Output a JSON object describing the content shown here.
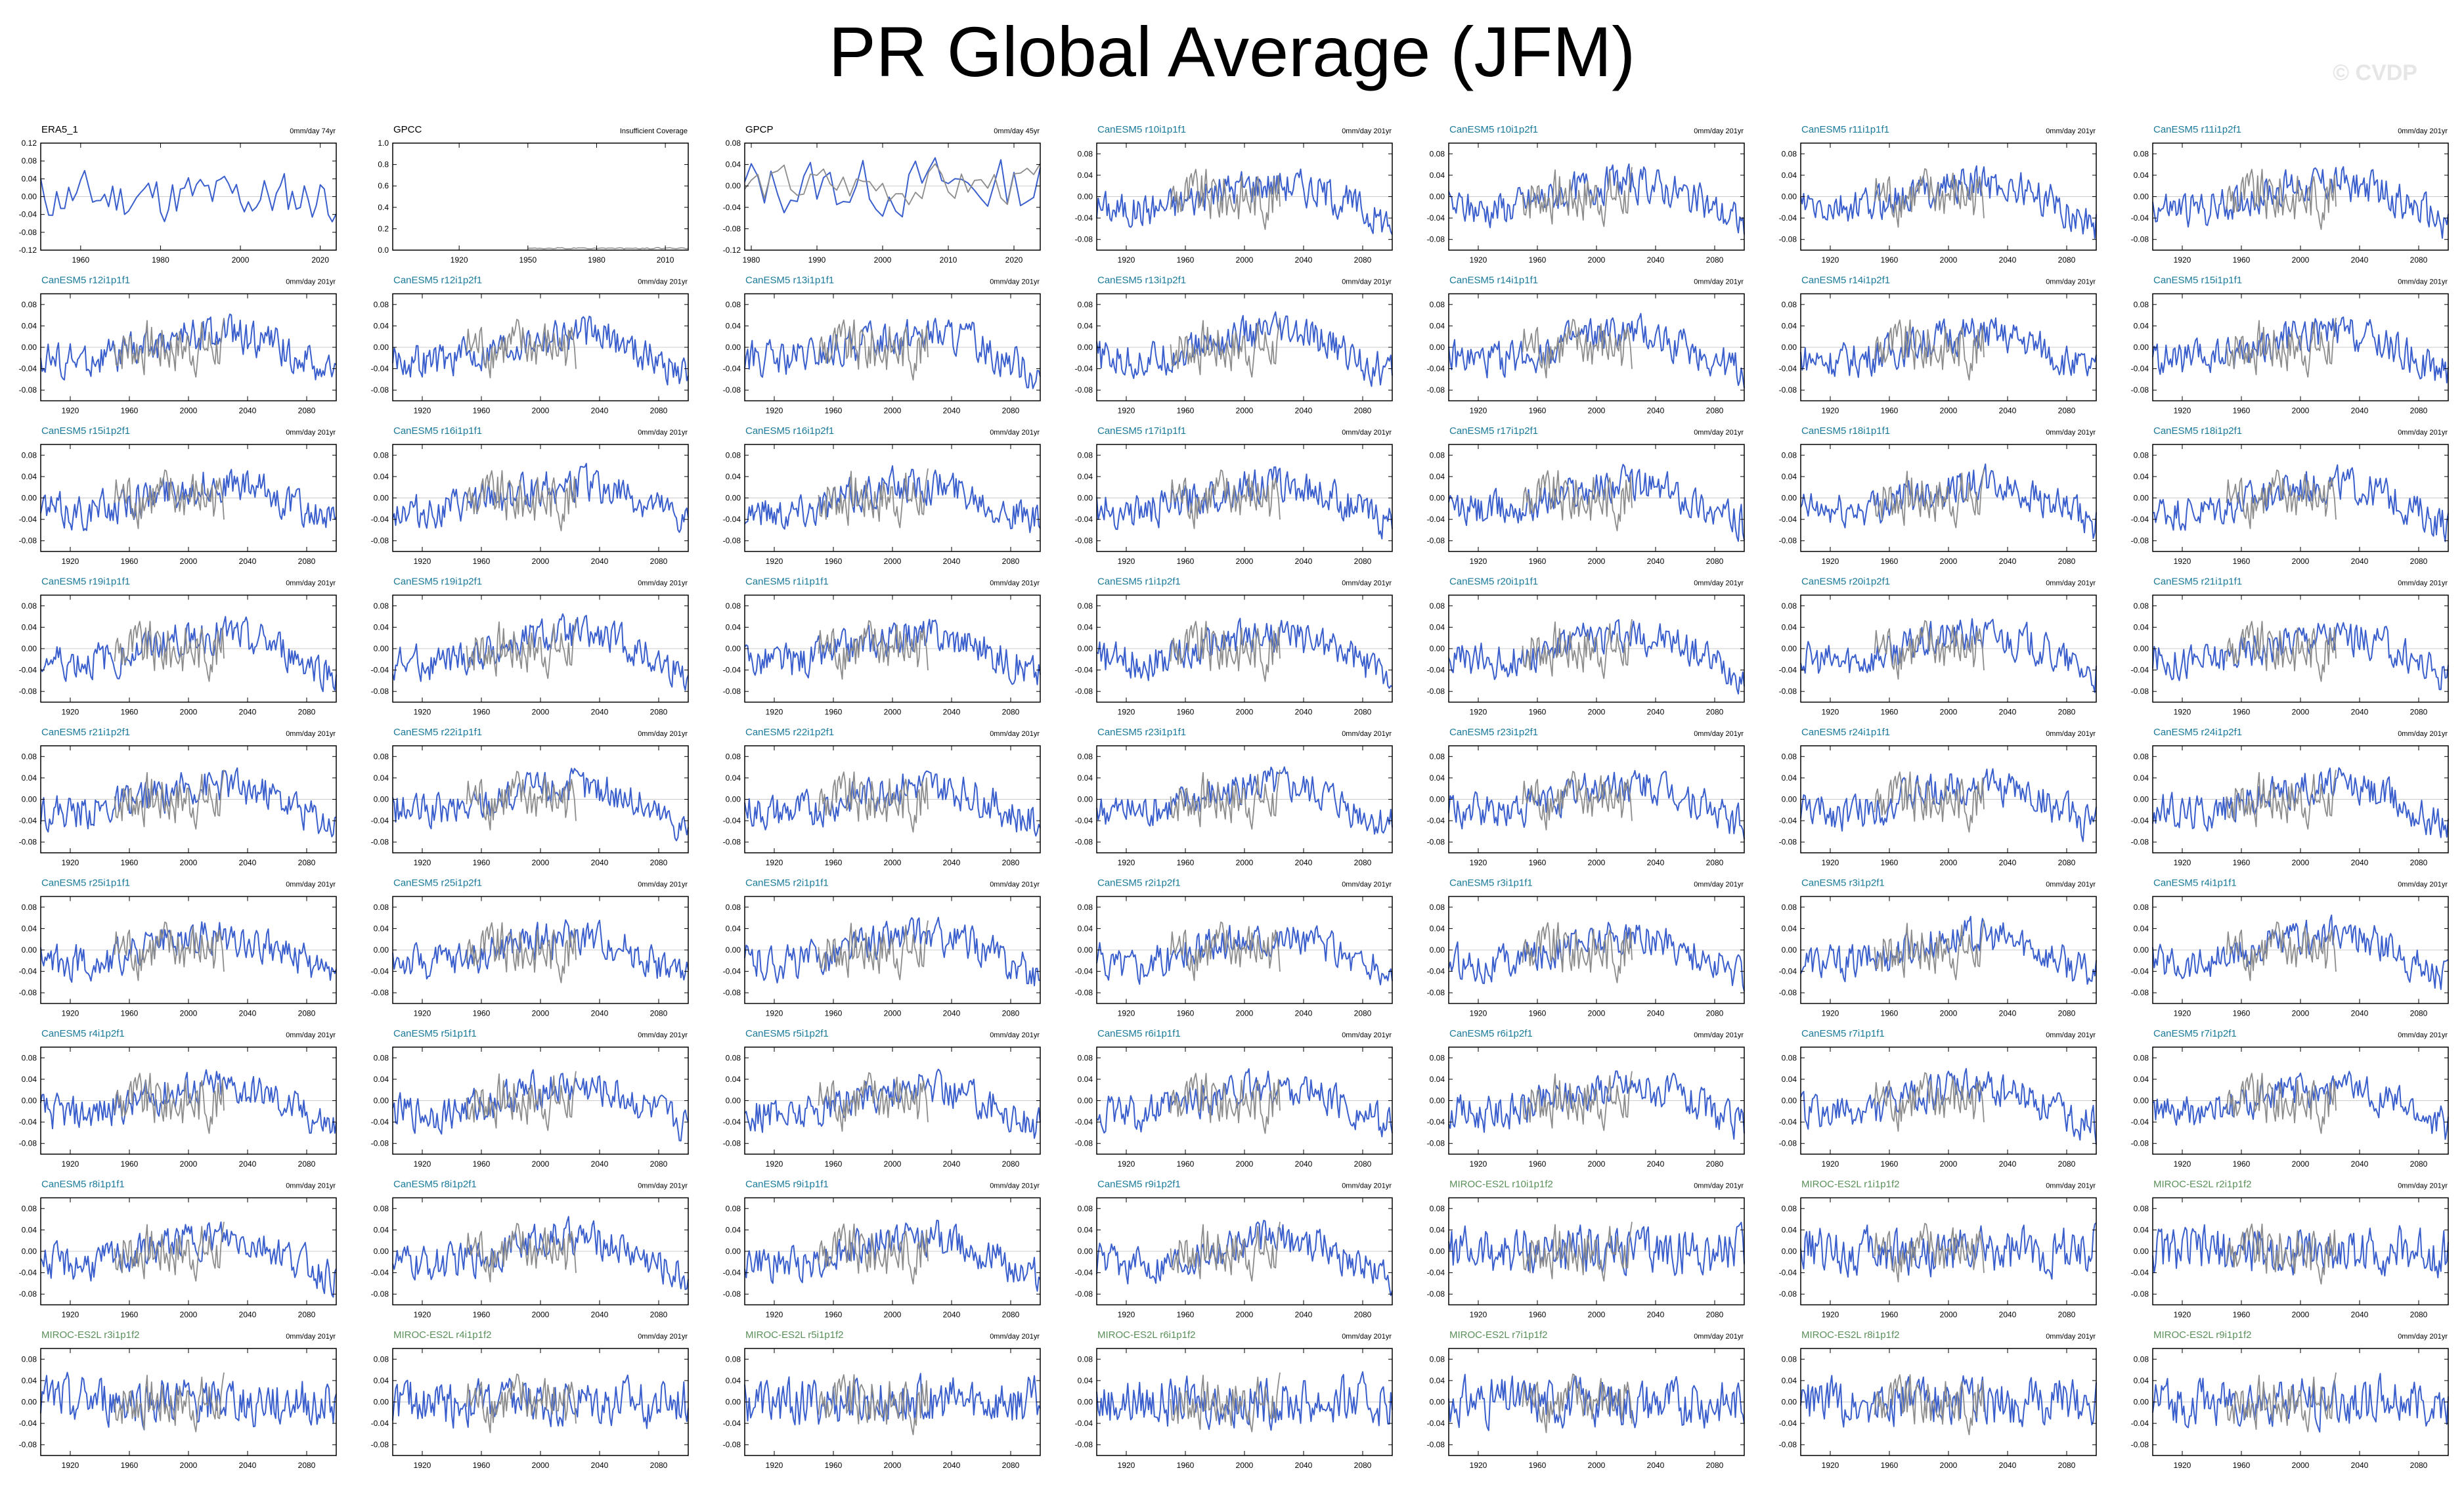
{
  "title": "PR Global Average (JFM)",
  "watermark": "© CVDP",
  "colors": {
    "model_line": "#3a5fcd",
    "obs_line": "#8c8c8c",
    "canesm_title": "#1a7a9a",
    "miroc_title": "#5a8f5a",
    "obs_title": "#000000",
    "zero_line": "#cccccc"
  },
  "chart_data": [
    {
      "type": "line",
      "title": "ERA5_1",
      "units": "0mm/day 74yr",
      "ylim": [
        -0.12,
        0.12
      ],
      "yticks": [
        "0.12",
        "0.08",
        "0.04",
        "0.00",
        "-0.04",
        "-0.08",
        "-0.12"
      ],
      "xlim": [
        1950,
        2024
      ],
      "xticks": [
        "1960",
        "1980",
        "2000",
        "2020"
      ],
      "series": [
        {
          "name": "ERA5_1",
          "kind": "obs_primary",
          "x_start": 1950,
          "x_end": 2024,
          "amplitude": 0.05,
          "seed": 11
        }
      ]
    },
    {
      "type": "line",
      "title": "GPCC",
      "units": "Insufficient Coverage",
      "ylim": [
        0,
        1.0
      ],
      "yticks": [
        "1.0",
        "0.8",
        "0.6",
        "0.4",
        "0.2",
        "0.0"
      ],
      "xlim": [
        1891,
        2020
      ],
      "xticks": [
        "1920",
        "1950",
        "1980",
        "2010"
      ],
      "series": [
        {
          "name": "GPCC",
          "kind": "obs_flat",
          "x_start": 1950,
          "x_end": 2020,
          "amplitude": 0.01,
          "seed": 12
        }
      ]
    },
    {
      "type": "line",
      "title": "GPCP",
      "units": "0mm/day 45yr",
      "ylim": [
        -0.12,
        0.08
      ],
      "yticks": [
        "0.08",
        "0.04",
        "0.00",
        "-0.04",
        "-0.08",
        "-0.12"
      ],
      "xlim": [
        1979,
        2024
      ],
      "xticks": [
        "1980",
        "1990",
        "2000",
        "2010",
        "2020"
      ],
      "series": [
        {
          "name": "GPCP",
          "kind": "obs_primary",
          "x_start": 1979,
          "x_end": 2024,
          "amplitude": 0.05,
          "seed": 13
        },
        {
          "name": "ERA5_1",
          "kind": "obs_overlay",
          "x_start": 1979,
          "x_end": 2024,
          "amplitude": 0.035,
          "seed": 14
        }
      ]
    },
    {
      "type": "line",
      "title": "CanESM5 r10i1p1f1",
      "units": "0mm/day 201yr",
      "model": "CanESM5",
      "seed": 101
    },
    {
      "type": "line",
      "title": "CanESM5 r10i1p2f1",
      "units": "0mm/day 201yr",
      "model": "CanESM5",
      "seed": 102
    },
    {
      "type": "line",
      "title": "CanESM5 r11i1p1f1",
      "units": "0mm/day 201yr",
      "model": "CanESM5",
      "seed": 103
    },
    {
      "type": "line",
      "title": "CanESM5 r11i1p2f1",
      "units": "0mm/day 201yr",
      "model": "CanESM5",
      "seed": 104
    },
    {
      "type": "line",
      "title": "CanESM5 r12i1p1f1",
      "units": "0mm/day 201yr",
      "model": "CanESM5",
      "seed": 105
    },
    {
      "type": "line",
      "title": "CanESM5 r12i1p2f1",
      "units": "0mm/day 201yr",
      "model": "CanESM5",
      "seed": 106
    },
    {
      "type": "line",
      "title": "CanESM5 r13i1p1f1",
      "units": "0mm/day 201yr",
      "model": "CanESM5",
      "seed": 107
    },
    {
      "type": "line",
      "title": "CanESM5 r13i1p2f1",
      "units": "0mm/day 201yr",
      "model": "CanESM5",
      "seed": 108
    },
    {
      "type": "line",
      "title": "CanESM5 r14i1p1f1",
      "units": "0mm/day 201yr",
      "model": "CanESM5",
      "seed": 109
    },
    {
      "type": "line",
      "title": "CanESM5 r14i1p2f1",
      "units": "0mm/day 201yr",
      "model": "CanESM5",
      "seed": 110
    },
    {
      "type": "line",
      "title": "CanESM5 r15i1p1f1",
      "units": "0mm/day 201yr",
      "model": "CanESM5",
      "seed": 111
    },
    {
      "type": "line",
      "title": "CanESM5 r15i1p2f1",
      "units": "0mm/day 201yr",
      "model": "CanESM5",
      "seed": 112
    },
    {
      "type": "line",
      "title": "CanESM5 r16i1p1f1",
      "units": "0mm/day 201yr",
      "model": "CanESM5",
      "seed": 113
    },
    {
      "type": "line",
      "title": "CanESM5 r16i1p2f1",
      "units": "0mm/day 201yr",
      "model": "CanESM5",
      "seed": 114
    },
    {
      "type": "line",
      "title": "CanESM5 r17i1p1f1",
      "units": "0mm/day 201yr",
      "model": "CanESM5",
      "seed": 115
    },
    {
      "type": "line",
      "title": "CanESM5 r17i1p2f1",
      "units": "0mm/day 201yr",
      "model": "CanESM5",
      "seed": 116
    },
    {
      "type": "line",
      "title": "CanESM5 r18i1p1f1",
      "units": "0mm/day 201yr",
      "model": "CanESM5",
      "seed": 117
    },
    {
      "type": "line",
      "title": "CanESM5 r18i1p2f1",
      "units": "0mm/day 201yr",
      "model": "CanESM5",
      "seed": 118
    },
    {
      "type": "line",
      "title": "CanESM5 r19i1p1f1",
      "units": "0mm/day 201yr",
      "model": "CanESM5",
      "seed": 119
    },
    {
      "type": "line",
      "title": "CanESM5 r19i1p2f1",
      "units": "0mm/day 201yr",
      "model": "CanESM5",
      "seed": 120
    },
    {
      "type": "line",
      "title": "CanESM5 r1i1p1f1",
      "units": "0mm/day 201yr",
      "model": "CanESM5",
      "seed": 121
    },
    {
      "type": "line",
      "title": "CanESM5 r1i1p2f1",
      "units": "0mm/day 201yr",
      "model": "CanESM5",
      "seed": 122
    },
    {
      "type": "line",
      "title": "CanESM5 r20i1p1f1",
      "units": "0mm/day 201yr",
      "model": "CanESM5",
      "seed": 123
    },
    {
      "type": "line",
      "title": "CanESM5 r20i1p2f1",
      "units": "0mm/day 201yr",
      "model": "CanESM5",
      "seed": 124
    },
    {
      "type": "line",
      "title": "CanESM5 r21i1p1f1",
      "units": "0mm/day 201yr",
      "model": "CanESM5",
      "seed": 125
    },
    {
      "type": "line",
      "title": "CanESM5 r21i1p2f1",
      "units": "0mm/day 201yr",
      "model": "CanESM5",
      "seed": 126
    },
    {
      "type": "line",
      "title": "CanESM5 r22i1p1f1",
      "units": "0mm/day 201yr",
      "model": "CanESM5",
      "seed": 127
    },
    {
      "type": "line",
      "title": "CanESM5 r22i1p2f1",
      "units": "0mm/day 201yr",
      "model": "CanESM5",
      "seed": 128
    },
    {
      "type": "line",
      "title": "CanESM5 r23i1p1f1",
      "units": "0mm/day 201yr",
      "model": "CanESM5",
      "seed": 129
    },
    {
      "type": "line",
      "title": "CanESM5 r23i1p2f1",
      "units": "0mm/day 201yr",
      "model": "CanESM5",
      "seed": 130
    },
    {
      "type": "line",
      "title": "CanESM5 r24i1p1f1",
      "units": "0mm/day 201yr",
      "model": "CanESM5",
      "seed": 131
    },
    {
      "type": "line",
      "title": "CanESM5 r24i1p2f1",
      "units": "0mm/day 201yr",
      "model": "CanESM5",
      "seed": 132
    },
    {
      "type": "line",
      "title": "CanESM5 r25i1p1f1",
      "units": "0mm/day 201yr",
      "model": "CanESM5",
      "seed": 133
    },
    {
      "type": "line",
      "title": "CanESM5 r25i1p2f1",
      "units": "0mm/day 201yr",
      "model": "CanESM5",
      "seed": 134
    },
    {
      "type": "line",
      "title": "CanESM5 r2i1p1f1",
      "units": "0mm/day 201yr",
      "model": "CanESM5",
      "seed": 135
    },
    {
      "type": "line",
      "title": "CanESM5 r2i1p2f1",
      "units": "0mm/day 201yr",
      "model": "CanESM5",
      "seed": 136
    },
    {
      "type": "line",
      "title": "CanESM5 r3i1p1f1",
      "units": "0mm/day 201yr",
      "model": "CanESM5",
      "seed": 137
    },
    {
      "type": "line",
      "title": "CanESM5 r3i1p2f1",
      "units": "0mm/day 201yr",
      "model": "CanESM5",
      "seed": 138
    },
    {
      "type": "line",
      "title": "CanESM5 r4i1p1f1",
      "units": "0mm/day 201yr",
      "model": "CanESM5",
      "seed": 139
    },
    {
      "type": "line",
      "title": "CanESM5 r4i1p2f1",
      "units": "0mm/day 201yr",
      "model": "CanESM5",
      "seed": 140
    },
    {
      "type": "line",
      "title": "CanESM5 r5i1p1f1",
      "units": "0mm/day 201yr",
      "model": "CanESM5",
      "seed": 141
    },
    {
      "type": "line",
      "title": "CanESM5 r5i1p2f1",
      "units": "0mm/day 201yr",
      "model": "CanESM5",
      "seed": 142
    },
    {
      "type": "line",
      "title": "CanESM5 r6i1p1f1",
      "units": "0mm/day 201yr",
      "model": "CanESM5",
      "seed": 143
    },
    {
      "type": "line",
      "title": "CanESM5 r6i1p2f1",
      "units": "0mm/day 201yr",
      "model": "CanESM5",
      "seed": 144
    },
    {
      "type": "line",
      "title": "CanESM5 r7i1p1f1",
      "units": "0mm/day 201yr",
      "model": "CanESM5",
      "seed": 145
    },
    {
      "type": "line",
      "title": "CanESM5 r7i1p2f1",
      "units": "0mm/day 201yr",
      "model": "CanESM5",
      "seed": 146
    },
    {
      "type": "line",
      "title": "CanESM5 r8i1p1f1",
      "units": "0mm/day 201yr",
      "model": "CanESM5",
      "seed": 147
    },
    {
      "type": "line",
      "title": "CanESM5 r8i1p2f1",
      "units": "0mm/day 201yr",
      "model": "CanESM5",
      "seed": 148
    },
    {
      "type": "line",
      "title": "CanESM5 r9i1p1f1",
      "units": "0mm/day 201yr",
      "model": "CanESM5",
      "seed": 149
    },
    {
      "type": "line",
      "title": "CanESM5 r9i1p2f1",
      "units": "0mm/day 201yr",
      "model": "CanESM5",
      "seed": 150
    },
    {
      "type": "line",
      "title": "MIROC-ES2L r10i1p1f2",
      "units": "0mm/day 201yr",
      "model": "MIROC-ES2L",
      "seed": 201
    },
    {
      "type": "line",
      "title": "MIROC-ES2L r1i1p1f2",
      "units": "0mm/day 201yr",
      "model": "MIROC-ES2L",
      "seed": 202
    },
    {
      "type": "line",
      "title": "MIROC-ES2L r2i1p1f2",
      "units": "0mm/day 201yr",
      "model": "MIROC-ES2L",
      "seed": 203
    },
    {
      "type": "line",
      "title": "MIROC-ES2L r3i1p1f2",
      "units": "0mm/day 201yr",
      "model": "MIROC-ES2L",
      "seed": 204
    },
    {
      "type": "line",
      "title": "MIROC-ES2L r4i1p1f2",
      "units": "0mm/day 201yr",
      "model": "MIROC-ES2L",
      "seed": 205
    },
    {
      "type": "line",
      "title": "MIROC-ES2L r5i1p1f2",
      "units": "0mm/day 201yr",
      "model": "MIROC-ES2L",
      "seed": 206
    },
    {
      "type": "line",
      "title": "MIROC-ES2L r6i1p1f2",
      "units": "0mm/day 201yr",
      "model": "MIROC-ES2L",
      "seed": 207
    },
    {
      "type": "line",
      "title": "MIROC-ES2L r7i1p1f2",
      "units": "0mm/day 201yr",
      "model": "MIROC-ES2L",
      "seed": 208
    },
    {
      "type": "line",
      "title": "MIROC-ES2L r8i1p1f2",
      "units": "0mm/day 201yr",
      "model": "MIROC-ES2L",
      "seed": 209
    },
    {
      "type": "line",
      "title": "MIROC-ES2L r9i1p1f2",
      "units": "0mm/day 201yr",
      "model": "MIROC-ES2L",
      "seed": 210
    }
  ],
  "model_panel_axes": {
    "ylim": [
      -0.1,
      0.1
    ],
    "yticks": [
      "0.08",
      "0.04",
      "0.00",
      "-0.04",
      "-0.08"
    ],
    "xlim": [
      1900,
      2100
    ],
    "xticks": [
      "1920",
      "1960",
      "2000",
      "2040",
      "2080"
    ],
    "model_span": [
      1900,
      2100
    ],
    "obs_overlay_span": [
      1950,
      2024
    ]
  }
}
